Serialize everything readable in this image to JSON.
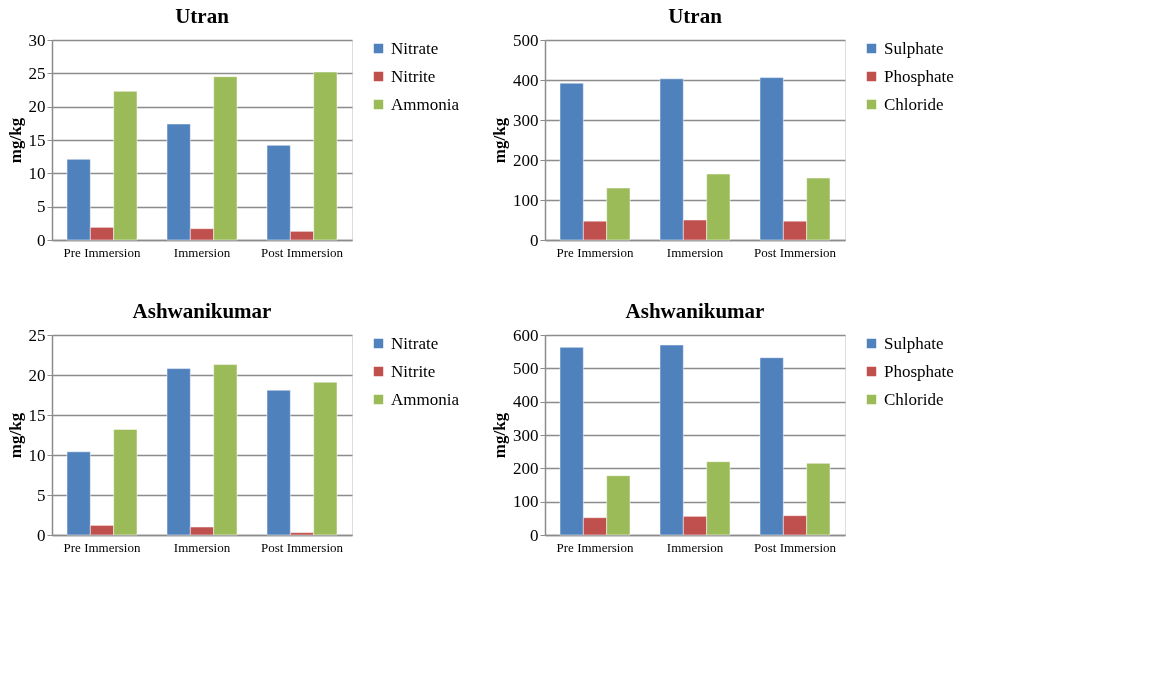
{
  "chart_data": [
    {
      "type": "bar",
      "title": "Utran",
      "ylabel": "mg/kg",
      "categories": [
        "Pre Immersion",
        "Immersion",
        "Post Immersion"
      ],
      "ylim": [
        0,
        30
      ],
      "yticks": [
        0,
        5,
        10,
        15,
        20,
        25,
        30
      ],
      "grid": "y",
      "legend": "right",
      "series": [
        {
          "name": "Nitrate",
          "color": "#4f81bd",
          "values": [
            12.1,
            17.4,
            14.2
          ]
        },
        {
          "name": "Nitrite",
          "color": "#c0504d",
          "values": [
            1.9,
            1.7,
            1.3
          ]
        },
        {
          "name": "Ammonia",
          "color": "#9bbb59",
          "values": [
            22.3,
            24.5,
            25.2
          ]
        }
      ]
    },
    {
      "type": "bar",
      "title": "Utran",
      "ylabel": "mg/kg",
      "categories": [
        "Pre Immersion",
        "Immersion",
        "Post Immersion"
      ],
      "ylim": [
        0,
        500
      ],
      "yticks": [
        0,
        100,
        200,
        300,
        400,
        500
      ],
      "grid": "y",
      "legend": "right",
      "series": [
        {
          "name": "Sulphate",
          "color": "#4f81bd",
          "values": [
            392,
            403,
            406
          ]
        },
        {
          "name": "Phosphate",
          "color": "#c0504d",
          "values": [
            47,
            50,
            47
          ]
        },
        {
          "name": "Chloride",
          "color": "#9bbb59",
          "values": [
            130,
            165,
            155
          ]
        }
      ]
    },
    {
      "type": "bar",
      "title": "Ashwanikumar",
      "ylabel": "mg/kg",
      "categories": [
        "Pre Immersion",
        "Immersion",
        "Post Immersion"
      ],
      "ylim": [
        0,
        25
      ],
      "yticks": [
        0,
        5,
        10,
        15,
        20,
        25
      ],
      "grid": "y",
      "legend": "right",
      "series": [
        {
          "name": "Nitrate",
          "color": "#4f81bd",
          "values": [
            10.4,
            20.8,
            18.1
          ]
        },
        {
          "name": "Nitrite",
          "color": "#c0504d",
          "values": [
            1.2,
            1.0,
            0.3
          ]
        },
        {
          "name": "Ammonia",
          "color": "#9bbb59",
          "values": [
            13.2,
            21.3,
            19.1
          ]
        }
      ]
    },
    {
      "type": "bar",
      "title": "Ashwanikumar",
      "ylabel": "mg/kg",
      "categories": [
        "Pre Immersion",
        "Immersion",
        "Post Immersion"
      ],
      "ylim": [
        0,
        600
      ],
      "yticks": [
        0,
        100,
        200,
        300,
        400,
        500,
        600
      ],
      "grid": "y",
      "legend": "right",
      "series": [
        {
          "name": "Sulphate",
          "color": "#4f81bd",
          "values": [
            563,
            570,
            532
          ]
        },
        {
          "name": "Phosphate",
          "color": "#c0504d",
          "values": [
            52,
            56,
            58
          ]
        },
        {
          "name": "Chloride",
          "color": "#9bbb59",
          "values": [
            178,
            220,
            215
          ]
        }
      ]
    }
  ]
}
